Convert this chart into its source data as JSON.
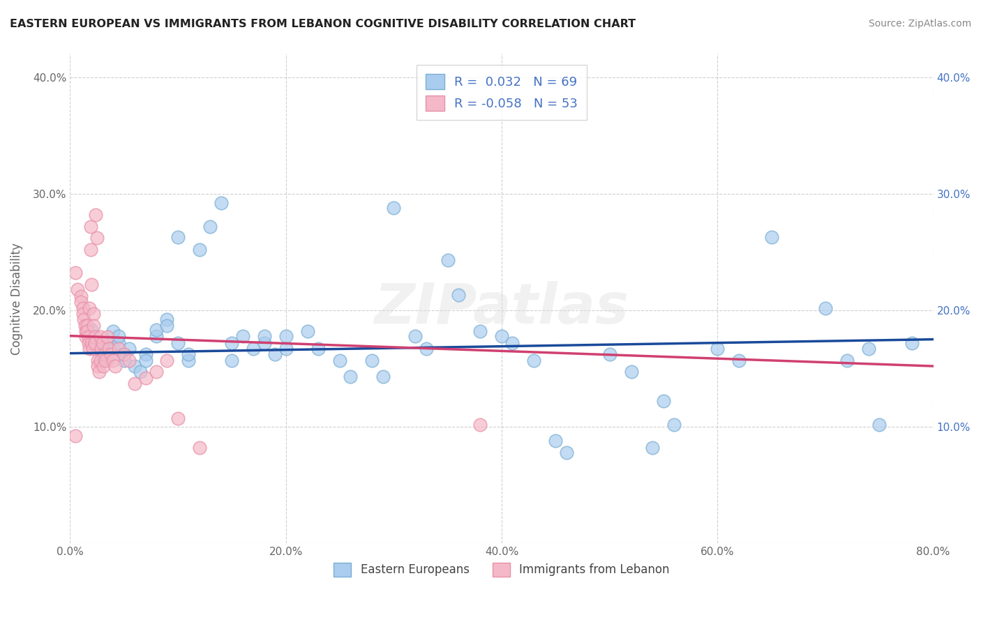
{
  "title": "EASTERN EUROPEAN VS IMMIGRANTS FROM LEBANON COGNITIVE DISABILITY CORRELATION CHART",
  "source": "Source: ZipAtlas.com",
  "ylabel": "Cognitive Disability",
  "r_blue": 0.032,
  "n_blue": 69,
  "r_pink": -0.058,
  "n_pink": 53,
  "xlim": [
    0.0,
    0.8
  ],
  "ylim": [
    0.0,
    0.42
  ],
  "xticks": [
    0.0,
    0.2,
    0.4,
    0.6,
    0.8
  ],
  "yticks": [
    0.0,
    0.1,
    0.2,
    0.3,
    0.4
  ],
  "xticklabels": [
    "0.0%",
    "20.0%",
    "40.0%",
    "60.0%",
    "80.0%"
  ],
  "yticklabels": [
    "",
    "10.0%",
    "20.0%",
    "30.0%",
    "40.0%"
  ],
  "blue_face_color": "#aaccee",
  "blue_edge_color": "#7bafd4",
  "pink_face_color": "#f4b8c8",
  "pink_edge_color": "#e890a8",
  "blue_line_color": "#1a4a9a",
  "pink_line_color": "#d04070",
  "background_color": "#ffffff",
  "grid_color": "#bbbbbb",
  "legend_text_color": "#4472c4",
  "blue_scatter": [
    [
      0.02,
      0.175
    ],
    [
      0.02,
      0.183
    ],
    [
      0.025,
      0.172
    ],
    [
      0.025,
      0.168
    ],
    [
      0.03,
      0.158
    ],
    [
      0.03,
      0.163
    ],
    [
      0.035,
      0.172
    ],
    [
      0.035,
      0.158
    ],
    [
      0.04,
      0.168
    ],
    [
      0.04,
      0.182
    ],
    [
      0.045,
      0.172
    ],
    [
      0.045,
      0.178
    ],
    [
      0.05,
      0.162
    ],
    [
      0.05,
      0.157
    ],
    [
      0.055,
      0.167
    ],
    [
      0.06,
      0.152
    ],
    [
      0.065,
      0.147
    ],
    [
      0.07,
      0.162
    ],
    [
      0.07,
      0.157
    ],
    [
      0.08,
      0.178
    ],
    [
      0.08,
      0.183
    ],
    [
      0.09,
      0.192
    ],
    [
      0.09,
      0.187
    ],
    [
      0.1,
      0.263
    ],
    [
      0.1,
      0.172
    ],
    [
      0.11,
      0.157
    ],
    [
      0.11,
      0.162
    ],
    [
      0.12,
      0.252
    ],
    [
      0.13,
      0.272
    ],
    [
      0.14,
      0.292
    ],
    [
      0.15,
      0.172
    ],
    [
      0.15,
      0.157
    ],
    [
      0.16,
      0.178
    ],
    [
      0.17,
      0.167
    ],
    [
      0.18,
      0.172
    ],
    [
      0.18,
      0.178
    ],
    [
      0.19,
      0.162
    ],
    [
      0.2,
      0.178
    ],
    [
      0.2,
      0.167
    ],
    [
      0.22,
      0.182
    ],
    [
      0.23,
      0.167
    ],
    [
      0.25,
      0.157
    ],
    [
      0.26,
      0.143
    ],
    [
      0.28,
      0.157
    ],
    [
      0.29,
      0.143
    ],
    [
      0.3,
      0.288
    ],
    [
      0.32,
      0.178
    ],
    [
      0.33,
      0.167
    ],
    [
      0.35,
      0.243
    ],
    [
      0.36,
      0.213
    ],
    [
      0.38,
      0.182
    ],
    [
      0.4,
      0.178
    ],
    [
      0.41,
      0.172
    ],
    [
      0.43,
      0.157
    ],
    [
      0.45,
      0.088
    ],
    [
      0.46,
      0.078
    ],
    [
      0.5,
      0.162
    ],
    [
      0.52,
      0.147
    ],
    [
      0.54,
      0.082
    ],
    [
      0.55,
      0.122
    ],
    [
      0.56,
      0.102
    ],
    [
      0.6,
      0.167
    ],
    [
      0.62,
      0.157
    ],
    [
      0.65,
      0.263
    ],
    [
      0.7,
      0.202
    ],
    [
      0.72,
      0.157
    ],
    [
      0.74,
      0.167
    ],
    [
      0.75,
      0.102
    ],
    [
      0.78,
      0.172
    ]
  ],
  "pink_scatter": [
    [
      0.005,
      0.232
    ],
    [
      0.007,
      0.218
    ],
    [
      0.01,
      0.212
    ],
    [
      0.01,
      0.207
    ],
    [
      0.012,
      0.202
    ],
    [
      0.012,
      0.197
    ],
    [
      0.013,
      0.192
    ],
    [
      0.014,
      0.187
    ],
    [
      0.015,
      0.182
    ],
    [
      0.015,
      0.177
    ],
    [
      0.016,
      0.187
    ],
    [
      0.016,
      0.182
    ],
    [
      0.017,
      0.177
    ],
    [
      0.017,
      0.172
    ],
    [
      0.018,
      0.167
    ],
    [
      0.018,
      0.202
    ],
    [
      0.019,
      0.272
    ],
    [
      0.019,
      0.252
    ],
    [
      0.02,
      0.222
    ],
    [
      0.02,
      0.172
    ],
    [
      0.021,
      0.167
    ],
    [
      0.022,
      0.197
    ],
    [
      0.022,
      0.187
    ],
    [
      0.023,
      0.177
    ],
    [
      0.023,
      0.172
    ],
    [
      0.024,
      0.282
    ],
    [
      0.025,
      0.262
    ],
    [
      0.026,
      0.157
    ],
    [
      0.026,
      0.152
    ],
    [
      0.027,
      0.147
    ],
    [
      0.028,
      0.157
    ],
    [
      0.028,
      0.177
    ],
    [
      0.029,
      0.167
    ],
    [
      0.03,
      0.172
    ],
    [
      0.031,
      0.152
    ],
    [
      0.032,
      0.162
    ],
    [
      0.033,
      0.157
    ],
    [
      0.035,
      0.177
    ],
    [
      0.036,
      0.167
    ],
    [
      0.038,
      0.162
    ],
    [
      0.04,
      0.157
    ],
    [
      0.042,
      0.152
    ],
    [
      0.045,
      0.167
    ],
    [
      0.05,
      0.162
    ],
    [
      0.055,
      0.157
    ],
    [
      0.06,
      0.137
    ],
    [
      0.07,
      0.142
    ],
    [
      0.08,
      0.147
    ],
    [
      0.09,
      0.157
    ],
    [
      0.1,
      0.107
    ],
    [
      0.12,
      0.082
    ],
    [
      0.005,
      0.092
    ],
    [
      0.38,
      0.102
    ]
  ],
  "blue_trend_x": [
    0.0,
    0.8
  ],
  "blue_trend_y": [
    0.163,
    0.175
  ],
  "pink_trend_x": [
    0.0,
    0.8
  ],
  "pink_trend_y": [
    0.178,
    0.152
  ]
}
